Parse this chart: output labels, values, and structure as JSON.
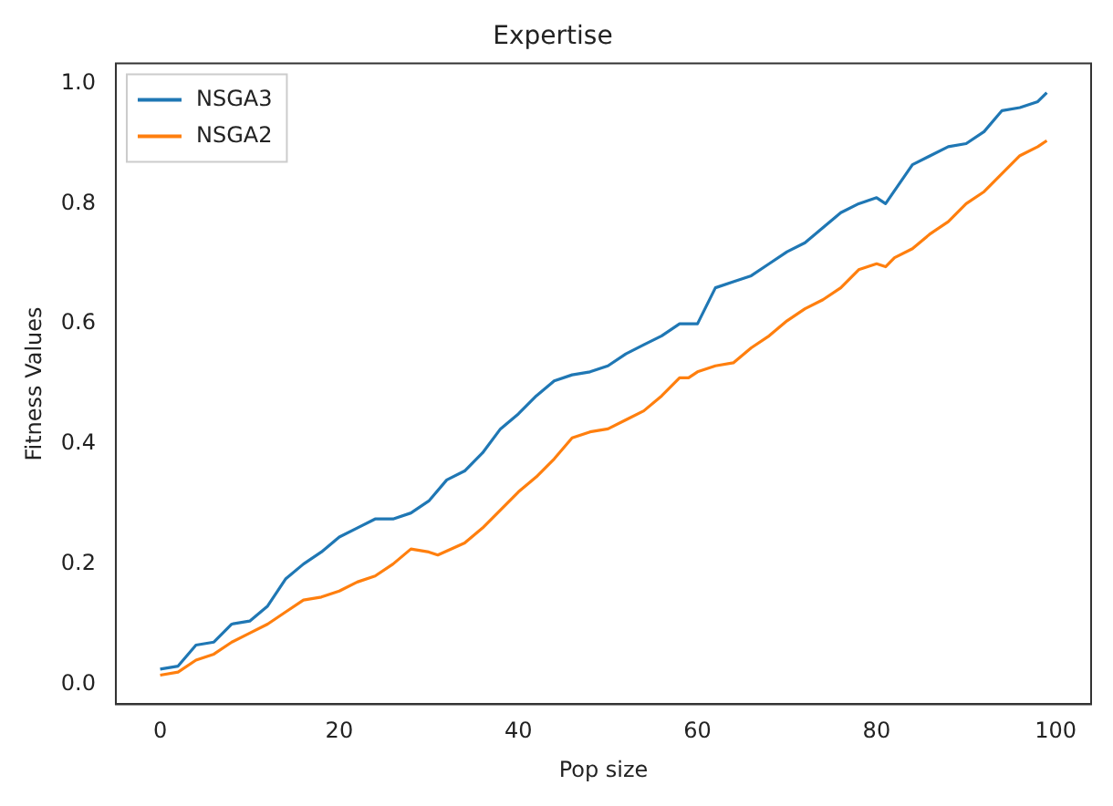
{
  "chart_data": {
    "type": "line",
    "title": "Expertise",
    "xlabel": "Pop size",
    "ylabel": "Fitness Values",
    "xlim": [
      -4.95,
      103.95
    ],
    "xticks": [
      0,
      20,
      40,
      60,
      80,
      100
    ],
    "ylim": [
      -0.0335,
      1.0335
    ],
    "yticks": [
      {
        "value": 0,
        "label": "0.0"
      },
      {
        "value": 0.2,
        "label": "0.2"
      },
      {
        "value": 0.4,
        "label": "0.4"
      },
      {
        "value": 0.6,
        "label": "0.6"
      },
      {
        "value": 0.8,
        "label": "0.8"
      },
      {
        "value": 1,
        "label": "1.0"
      }
    ],
    "grid": false,
    "legend": "top left",
    "marker": "none",
    "line_style": "solid",
    "series": [
      {
        "name": "NSGA3",
        "color": "#1f77b4",
        "x": [
          0,
          2,
          4,
          6,
          8,
          10,
          12,
          14,
          16,
          18,
          20,
          22,
          24,
          26,
          28,
          30,
          32,
          34,
          36,
          38,
          40,
          42,
          44,
          46,
          48,
          50,
          52,
          54,
          56,
          58,
          60,
          62,
          64,
          66,
          68,
          70,
          72,
          74,
          76,
          78,
          80,
          81,
          84,
          86,
          88,
          90,
          92,
          94,
          96,
          98,
          99
        ],
        "values": [
          0.025,
          0.03,
          0.065,
          0.07,
          0.1,
          0.105,
          0.13,
          0.175,
          0.2,
          0.22,
          0.245,
          0.26,
          0.275,
          0.275,
          0.285,
          0.305,
          0.34,
          0.355,
          0.385,
          0.425,
          0.45,
          0.48,
          0.505,
          0.515,
          0.52,
          0.53,
          0.55,
          0.565,
          0.58,
          0.6,
          0.6,
          0.66,
          0.67,
          0.68,
          0.7,
          0.72,
          0.735,
          0.76,
          0.785,
          0.8,
          0.81,
          0.8,
          0.865,
          0.88,
          0.895,
          0.9,
          0.92,
          0.955,
          0.96,
          0.97,
          0.985
        ]
      },
      {
        "name": "NSGA2",
        "color": "#ff7f0e",
        "x": [
          0,
          2,
          4,
          6,
          8,
          10,
          12,
          14,
          16,
          18,
          20,
          22,
          24,
          26,
          28,
          30,
          31,
          34,
          36,
          38,
          40,
          42,
          44,
          46,
          48,
          50,
          52,
          54,
          56,
          58,
          59,
          60,
          62,
          64,
          66,
          68,
          70,
          72,
          74,
          76,
          78,
          80,
          81,
          82,
          84,
          86,
          88,
          90,
          92,
          94,
          96,
          98,
          99
        ],
        "values": [
          0.015,
          0.02,
          0.04,
          0.05,
          0.07,
          0.085,
          0.1,
          0.12,
          0.14,
          0.145,
          0.155,
          0.17,
          0.18,
          0.2,
          0.225,
          0.22,
          0.215,
          0.235,
          0.26,
          0.29,
          0.32,
          0.345,
          0.375,
          0.41,
          0.42,
          0.425,
          0.44,
          0.455,
          0.48,
          0.51,
          0.51,
          0.52,
          0.53,
          0.535,
          0.56,
          0.58,
          0.605,
          0.625,
          0.64,
          0.66,
          0.69,
          0.7,
          0.695,
          0.71,
          0.725,
          0.75,
          0.77,
          0.8,
          0.82,
          0.85,
          0.88,
          0.895,
          0.905
        ]
      }
    ]
  }
}
